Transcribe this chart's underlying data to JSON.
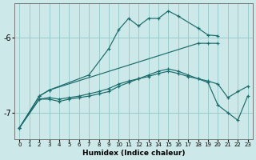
{
  "xlabel": "Humidex (Indice chaleur)",
  "background_color": "#cce8e8",
  "grid_color": "#99cccc",
  "line_color": "#1a6b6b",
  "xlim": [
    -0.5,
    23.5
  ],
  "ylim": [
    -7.35,
    -5.55
  ],
  "yticks": [
    -7,
    -6
  ],
  "xticks": [
    0,
    1,
    2,
    3,
    4,
    5,
    6,
    7,
    8,
    9,
    10,
    11,
    12,
    13,
    14,
    15,
    16,
    17,
    18,
    19,
    20,
    21,
    22,
    23
  ],
  "series": [
    {
      "x": [
        0,
        2,
        3,
        7,
        9,
        10,
        11,
        12,
        13,
        14,
        15,
        16,
        18,
        19,
        20
      ],
      "y": [
        -7.2,
        -6.78,
        -6.7,
        -6.5,
        -6.15,
        -5.9,
        -5.75,
        -5.85,
        -5.75,
        -5.75,
        -5.65,
        -5.72,
        -5.88,
        -5.97,
        -5.98
      ]
    },
    {
      "x": [
        0,
        2,
        3,
        18,
        19,
        20
      ],
      "y": [
        -7.2,
        -6.78,
        -6.7,
        -6.08,
        -6.08,
        -6.08
      ]
    },
    {
      "x": [
        0,
        2,
        3,
        4,
        5,
        6,
        7,
        8,
        9,
        10,
        11,
        12,
        13,
        14,
        15,
        16,
        17,
        18,
        19,
        20,
        21,
        22,
        23
      ],
      "y": [
        -7.2,
        -6.82,
        -6.8,
        -6.82,
        -6.8,
        -6.78,
        -6.75,
        -6.72,
        -6.68,
        -6.62,
        -6.58,
        -6.55,
        -6.52,
        -6.48,
        -6.45,
        -6.48,
        -6.52,
        -6.55,
        -6.58,
        -6.62,
        -6.8,
        -6.72,
        -6.65
      ]
    },
    {
      "x": [
        0,
        2,
        3,
        4,
        5,
        6,
        7,
        8,
        9,
        10,
        11,
        12,
        13,
        14,
        15,
        16,
        17,
        18,
        19,
        20,
        21,
        22,
        23
      ],
      "y": [
        -7.2,
        -6.82,
        -6.82,
        -6.85,
        -6.82,
        -6.8,
        -6.78,
        -6.75,
        -6.72,
        -6.65,
        -6.6,
        -6.55,
        -6.5,
        -6.45,
        -6.42,
        -6.45,
        -6.5,
        -6.55,
        -6.6,
        -6.9,
        -7.0,
        -7.1,
        -6.78
      ]
    }
  ]
}
